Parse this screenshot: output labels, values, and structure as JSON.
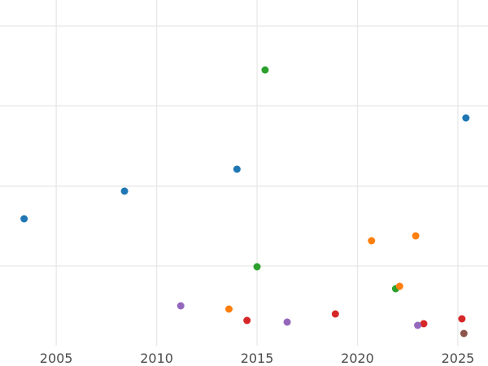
{
  "chart_data": {
    "type": "scatter",
    "xlim": [
      2002.2,
      2026.5
    ],
    "ylim": [
      0,
      425
    ],
    "x_ticks": [
      2005,
      2010,
      2015,
      2020,
      2025
    ],
    "x_tick_labels": [
      "2005",
      "2010",
      "2015",
      "2020",
      "2025"
    ],
    "y_ticks": [
      98,
      196,
      295,
      393
    ],
    "grid": true,
    "legend": "none",
    "colors": {
      "blue": "#1f77b4",
      "orange": "#ff7f0e",
      "green": "#2ca02c",
      "red": "#d62728",
      "purple": "#9467bd",
      "brown": "#8c564b",
      "grid": "#e6e6e6",
      "tick_text": "#4a4a4a"
    },
    "points": [
      {
        "x": 2003.4,
        "y": 156,
        "color": "blue"
      },
      {
        "x": 2008.4,
        "y": 190,
        "color": "blue"
      },
      {
        "x": 2014.0,
        "y": 217,
        "color": "blue"
      },
      {
        "x": 2025.4,
        "y": 280,
        "color": "blue"
      },
      {
        "x": 2015.4,
        "y": 339,
        "color": "green"
      },
      {
        "x": 2015.0,
        "y": 97,
        "color": "green"
      },
      {
        "x": 2021.9,
        "y": 70,
        "color": "green"
      },
      {
        "x": 2013.6,
        "y": 45,
        "color": "orange"
      },
      {
        "x": 2020.7,
        "y": 129,
        "color": "orange"
      },
      {
        "x": 2022.9,
        "y": 135,
        "color": "orange"
      },
      {
        "x": 2022.1,
        "y": 73,
        "color": "orange"
      },
      {
        "x": 2014.5,
        "y": 31,
        "color": "red"
      },
      {
        "x": 2018.9,
        "y": 39,
        "color": "red"
      },
      {
        "x": 2023.3,
        "y": 27,
        "color": "red"
      },
      {
        "x": 2025.2,
        "y": 33,
        "color": "red"
      },
      {
        "x": 2011.2,
        "y": 49,
        "color": "purple"
      },
      {
        "x": 2016.5,
        "y": 29,
        "color": "purple"
      },
      {
        "x": 2023.0,
        "y": 25,
        "color": "purple"
      },
      {
        "x": 2025.3,
        "y": 15,
        "color": "brown"
      }
    ]
  }
}
